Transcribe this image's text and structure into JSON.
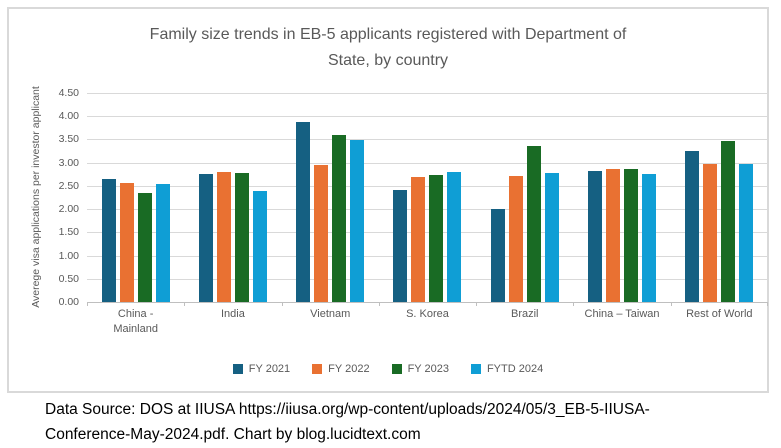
{
  "page": {
    "caption": "Data Source: DOS at IIUSA https://iiusa.org/wp-content/uploads/2024/05/3_EB-5-IIUSA-Conference-May-2024.pdf. Chart by blog.lucidtext.com"
  },
  "chart_data": {
    "type": "bar",
    "title": "Family size trends in EB-5 applicants registered with Department of State, by country",
    "xlabel": "",
    "ylabel": "Averege visa applications per investor applicant",
    "ylim": [
      0,
      4.5
    ],
    "ytick_step": 0.5,
    "ytick_labels": [
      "4.50",
      "4.00",
      "3.50",
      "3.00",
      "2.50",
      "2.00",
      "1.50",
      "1.00",
      "0.50",
      "0.00"
    ],
    "grid": true,
    "legend_position": "bottom",
    "categories": [
      "China - Mainland",
      "India",
      "Vietnam",
      "S. Korea",
      "Brazil",
      "China – Taiwan",
      "Rest of World"
    ],
    "series": [
      {
        "name": "FY 2021",
        "color": "#156082",
        "values": [
          2.65,
          2.75,
          3.88,
          2.42,
          2.0,
          2.83,
          3.25
        ]
      },
      {
        "name": "FY 2022",
        "color": "#E97132",
        "values": [
          2.57,
          2.8,
          2.94,
          2.7,
          2.71,
          2.87,
          2.97
        ]
      },
      {
        "name": "FY 2023",
        "color": "#196B24",
        "values": [
          2.35,
          2.78,
          3.6,
          2.73,
          3.35,
          2.86,
          3.46
        ]
      },
      {
        "name": "FYTD 2024",
        "color": "#0F9ED5",
        "values": [
          2.54,
          2.38,
          3.48,
          2.81,
          2.78,
          2.75,
          2.97
        ]
      }
    ],
    "colors": {
      "grid": "#D9D9D9",
      "axis_line": "#BFBFBF",
      "text": "#595959",
      "frame_border": "#D9D9D9",
      "caption_text": "#000000"
    }
  }
}
